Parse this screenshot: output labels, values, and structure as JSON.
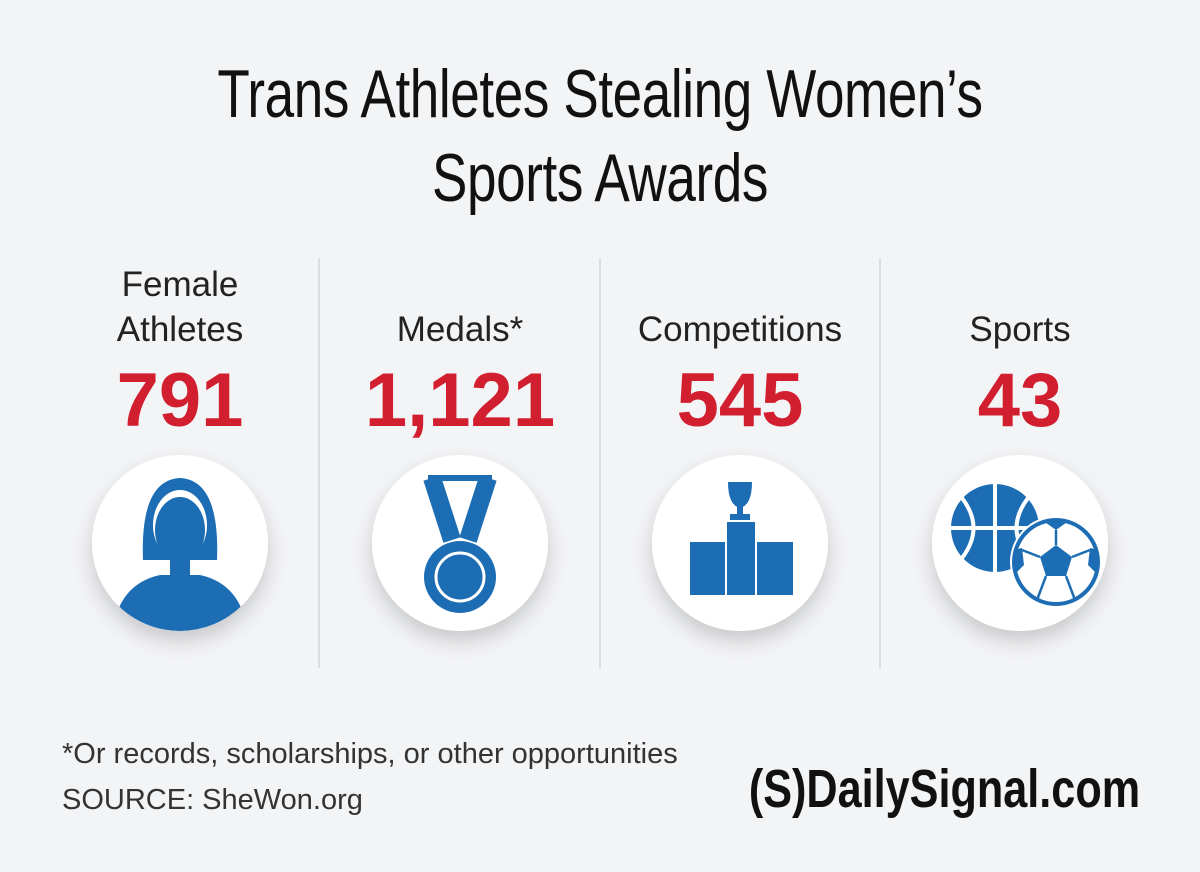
{
  "header": {
    "title": "Trans Athletes Stealing Women’s Sports Awards"
  },
  "stats": [
    {
      "label": "Female Athletes",
      "value": "791"
    },
    {
      "label": "Medals*",
      "value": "1,121"
    },
    {
      "label": "Competitions",
      "value": "545"
    },
    {
      "label": "Sports",
      "value": "43"
    }
  ],
  "footer": {
    "note": "*Or records, scholarships, or other opportunities",
    "source": "SOURCE: SheWon.org",
    "logo": "(S)DailySignal.com"
  }
}
